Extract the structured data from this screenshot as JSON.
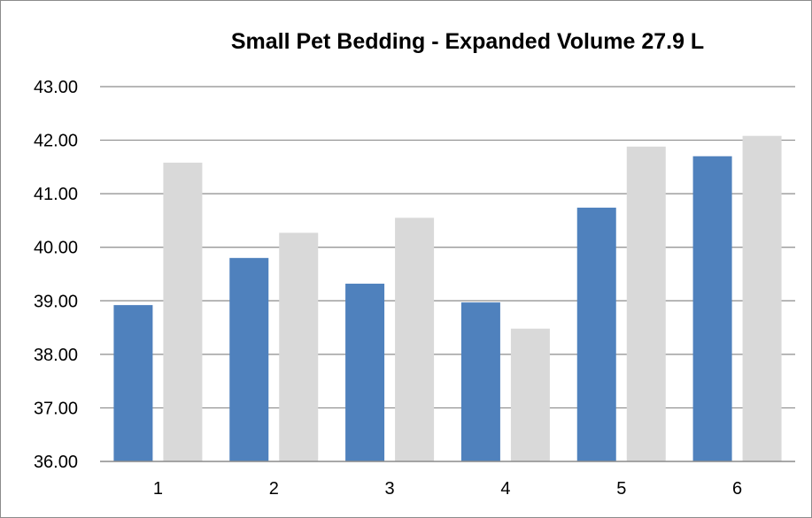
{
  "chart_data": {
    "type": "bar",
    "title": "Small Pet Bedding - Expanded Volume 27.9 L",
    "xlabel": "",
    "ylabel": "",
    "categories": [
      "1",
      "2",
      "3",
      "4",
      "5",
      "6"
    ],
    "series": [
      {
        "color": "#4f81bd",
        "values": [
          38.92,
          39.8,
          39.32,
          38.97,
          40.74,
          41.7
        ]
      },
      {
        "color": "#d9d9d9",
        "values": [
          41.58,
          40.27,
          40.55,
          38.48,
          41.88,
          42.08
        ]
      }
    ],
    "ylim": [
      36,
      43
    ],
    "yticks": [
      "36.00",
      "37.00",
      "38.00",
      "39.00",
      "40.00",
      "41.00",
      "42.00",
      "43.00"
    ],
    "grid": true,
    "legend": "none"
  }
}
